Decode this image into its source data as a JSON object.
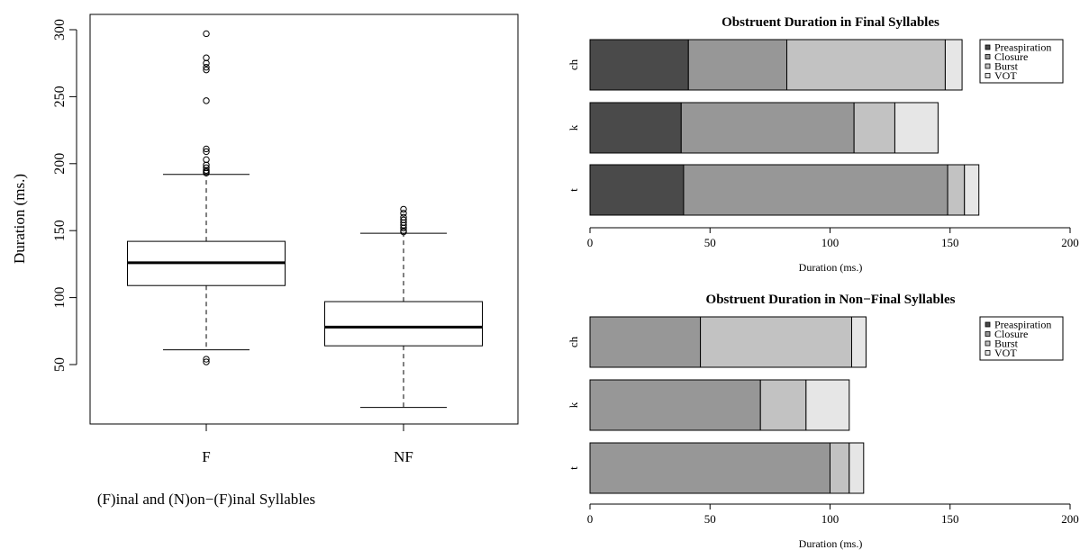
{
  "chart_data": [
    {
      "type": "box",
      "title": "",
      "xlabel": "(F)inal and (N)on−(F)inal Syllables",
      "ylabel": "Duration (ms.)",
      "categories": [
        "F",
        "NF"
      ],
      "ylim": [
        8,
        306
      ],
      "yticks": [
        50,
        100,
        150,
        200,
        250,
        300
      ],
      "boxes": [
        {
          "label": "F",
          "whisker_low": 61,
          "q1": 109,
          "median": 126,
          "q3": 142,
          "whisker_high": 192,
          "outliers": [
            297,
            279,
            275,
            272,
            270,
            247,
            211,
            209,
            203,
            199,
            197,
            195,
            194,
            193,
            54,
            52
          ]
        },
        {
          "label": "NF",
          "whisker_low": 18,
          "q1": 64,
          "median": 78,
          "q3": 97,
          "whisker_high": 148,
          "outliers": [
            166,
            163,
            160,
            158,
            156,
            154,
            152,
            150,
            149
          ]
        }
      ]
    },
    {
      "type": "bar",
      "orientation": "horizontal",
      "stacked": true,
      "title": "Obstruent Duration in Final Syllables",
      "xlabel": "Duration (ms.)",
      "ylabel": "",
      "categories": [
        "ch",
        "k",
        "t"
      ],
      "xlim": [
        0,
        200
      ],
      "xticks": [
        0,
        50,
        100,
        150,
        200
      ],
      "legend": {
        "position": "top-right",
        "entries": [
          "Preaspiration",
          "Closure",
          "Burst",
          "VOT"
        ]
      },
      "series": [
        {
          "name": "Preaspiration",
          "color": "#4a4a4a",
          "values": [
            41,
            38,
            39
          ]
        },
        {
          "name": "Closure",
          "color": "#979797",
          "values": [
            41,
            72,
            110
          ]
        },
        {
          "name": "Burst",
          "color": "#c2c2c2",
          "values": [
            66,
            17,
            7
          ]
        },
        {
          "name": "VOT",
          "color": "#e6e6e6",
          "values": [
            7,
            18,
            6
          ]
        }
      ]
    },
    {
      "type": "bar",
      "orientation": "horizontal",
      "stacked": true,
      "title": "Obstruent Duration in Non−Final Syllables",
      "xlabel": "Duration (ms.)",
      "ylabel": "",
      "categories": [
        "ch",
        "k",
        "t"
      ],
      "xlim": [
        0,
        200
      ],
      "xticks": [
        0,
        50,
        100,
        150,
        200
      ],
      "legend": {
        "position": "top-right",
        "entries": [
          "Preaspiration",
          "Closure",
          "Burst",
          "VOT"
        ]
      },
      "series": [
        {
          "name": "Preaspiration",
          "color": "#4a4a4a",
          "values": [
            0,
            0,
            0
          ]
        },
        {
          "name": "Closure",
          "color": "#979797",
          "values": [
            46,
            71,
            100
          ]
        },
        {
          "name": "Burst",
          "color": "#c2c2c2",
          "values": [
            63,
            19,
            8
          ]
        },
        {
          "name": "VOT",
          "color": "#e6e6e6",
          "values": [
            6,
            18,
            6
          ]
        }
      ]
    }
  ]
}
